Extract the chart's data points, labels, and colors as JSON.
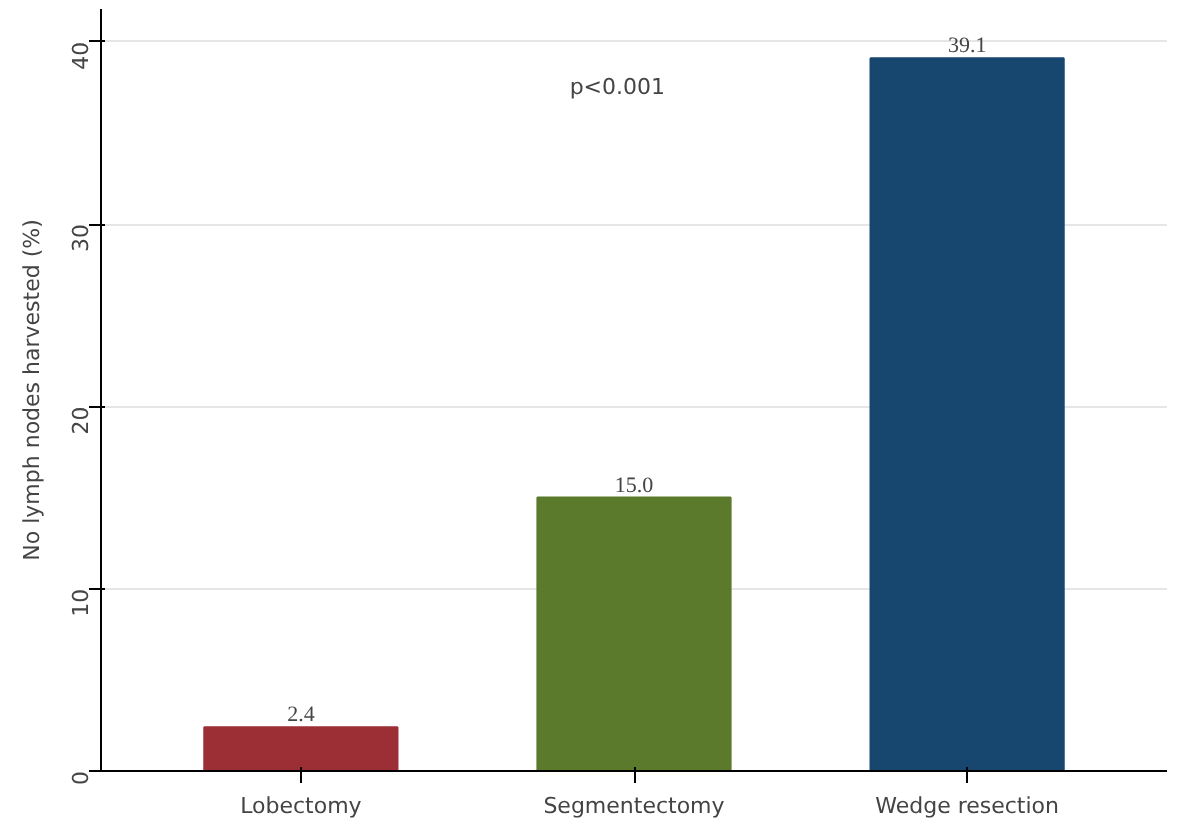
{
  "chart_data": {
    "type": "bar",
    "ylabel": "No lymph nodes harvested (%)",
    "categories": [
      "Lobectomy",
      "Segmentectomy",
      "Wedge resection"
    ],
    "values": [
      2.4,
      15.0,
      39.1
    ],
    "colors": [
      "#9c2f35",
      "#5b7a2b",
      "#17466f"
    ],
    "value_labels": [
      "2.4",
      "15.0",
      "39.1"
    ],
    "ylim": [
      0,
      41.8
    ],
    "yticks": [
      0,
      10,
      20,
      30,
      40
    ],
    "grid": "y",
    "annotations": [
      "p<0.001"
    ]
  }
}
